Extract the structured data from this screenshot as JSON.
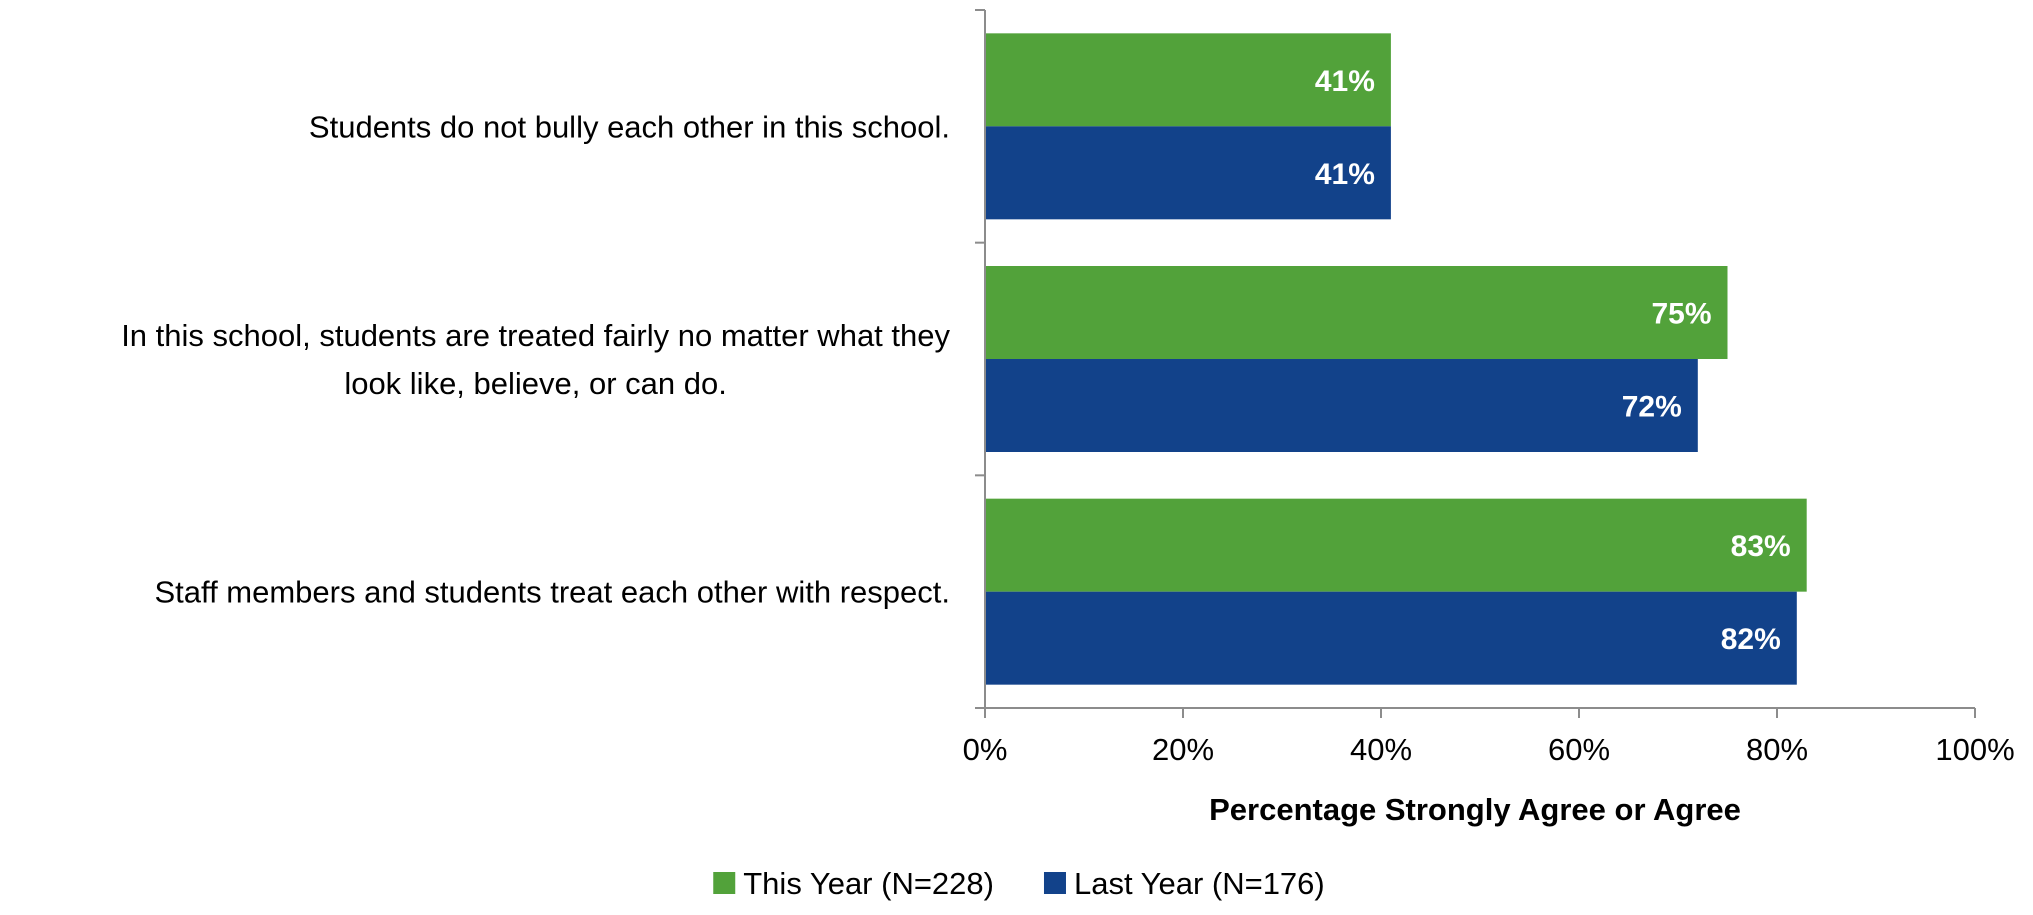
{
  "chart_data": {
    "type": "bar",
    "orientation": "horizontal",
    "title": "",
    "xlabel": "Percentage Strongly Agree or Agree",
    "ylabel": "",
    "xlim": [
      0,
      100
    ],
    "x_ticks": [
      "0%",
      "20%",
      "40%",
      "60%",
      "80%",
      "100%"
    ],
    "x_tick_values": [
      0,
      20,
      40,
      60,
      80,
      100
    ],
    "categories": [
      [
        "Students do not bully each other in this school."
      ],
      [
        "In this school, students are treated fairly no matter what they",
        "look like, believe, or can do."
      ],
      [
        "Staff members and students treat each other with respect."
      ]
    ],
    "series": [
      {
        "name": "This Year (N=228)",
        "color": "#52a23a",
        "values": [
          41,
          75,
          83
        ],
        "labels": [
          "41%",
          "75%",
          "83%"
        ]
      },
      {
        "name": "Last Year (N=176)",
        "color": "#12428a",
        "values": [
          41,
          72,
          82
        ],
        "labels": [
          "41%",
          "72%",
          "82%"
        ]
      }
    ],
    "grid": false,
    "legend_position": "bottom-center"
  }
}
